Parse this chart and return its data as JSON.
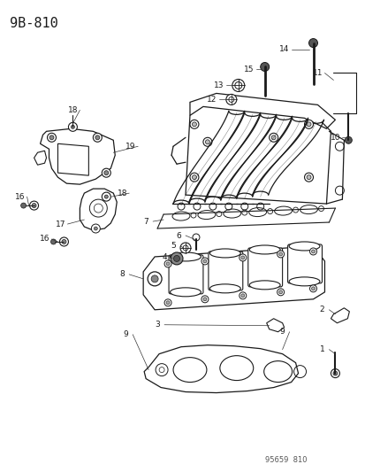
{
  "title": "9B-810",
  "background_color": "#ffffff",
  "line_color": "#1a1a1a",
  "fig_width": 4.14,
  "fig_height": 5.33,
  "dpi": 100,
  "watermark": "95659  810"
}
